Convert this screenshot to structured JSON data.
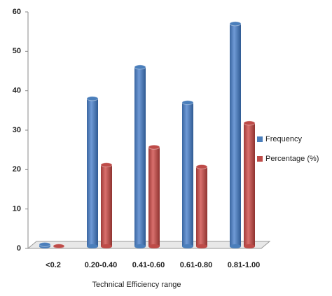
{
  "chart_data": {
    "type": "bar",
    "x_label": "Technical Efficiency range",
    "categories": [
      "<0.2",
      "0.20-0.40",
      "0.41-0.60",
      "0.61-0.80",
      "0.81-1.00"
    ],
    "series": [
      {
        "name": "Frequency",
        "color": "#4a7ebb",
        "values": [
          1,
          38,
          46,
          37,
          57
        ]
      },
      {
        "name": "Percentage (%)",
        "color": "#be4b48",
        "values": [
          0.6,
          21.2,
          25.7,
          20.7,
          31.8
        ]
      }
    ],
    "ylim": [
      0,
      60
    ],
    "yticks": [
      0,
      10,
      20,
      30,
      40,
      50,
      60
    ],
    "legend": "right"
  }
}
